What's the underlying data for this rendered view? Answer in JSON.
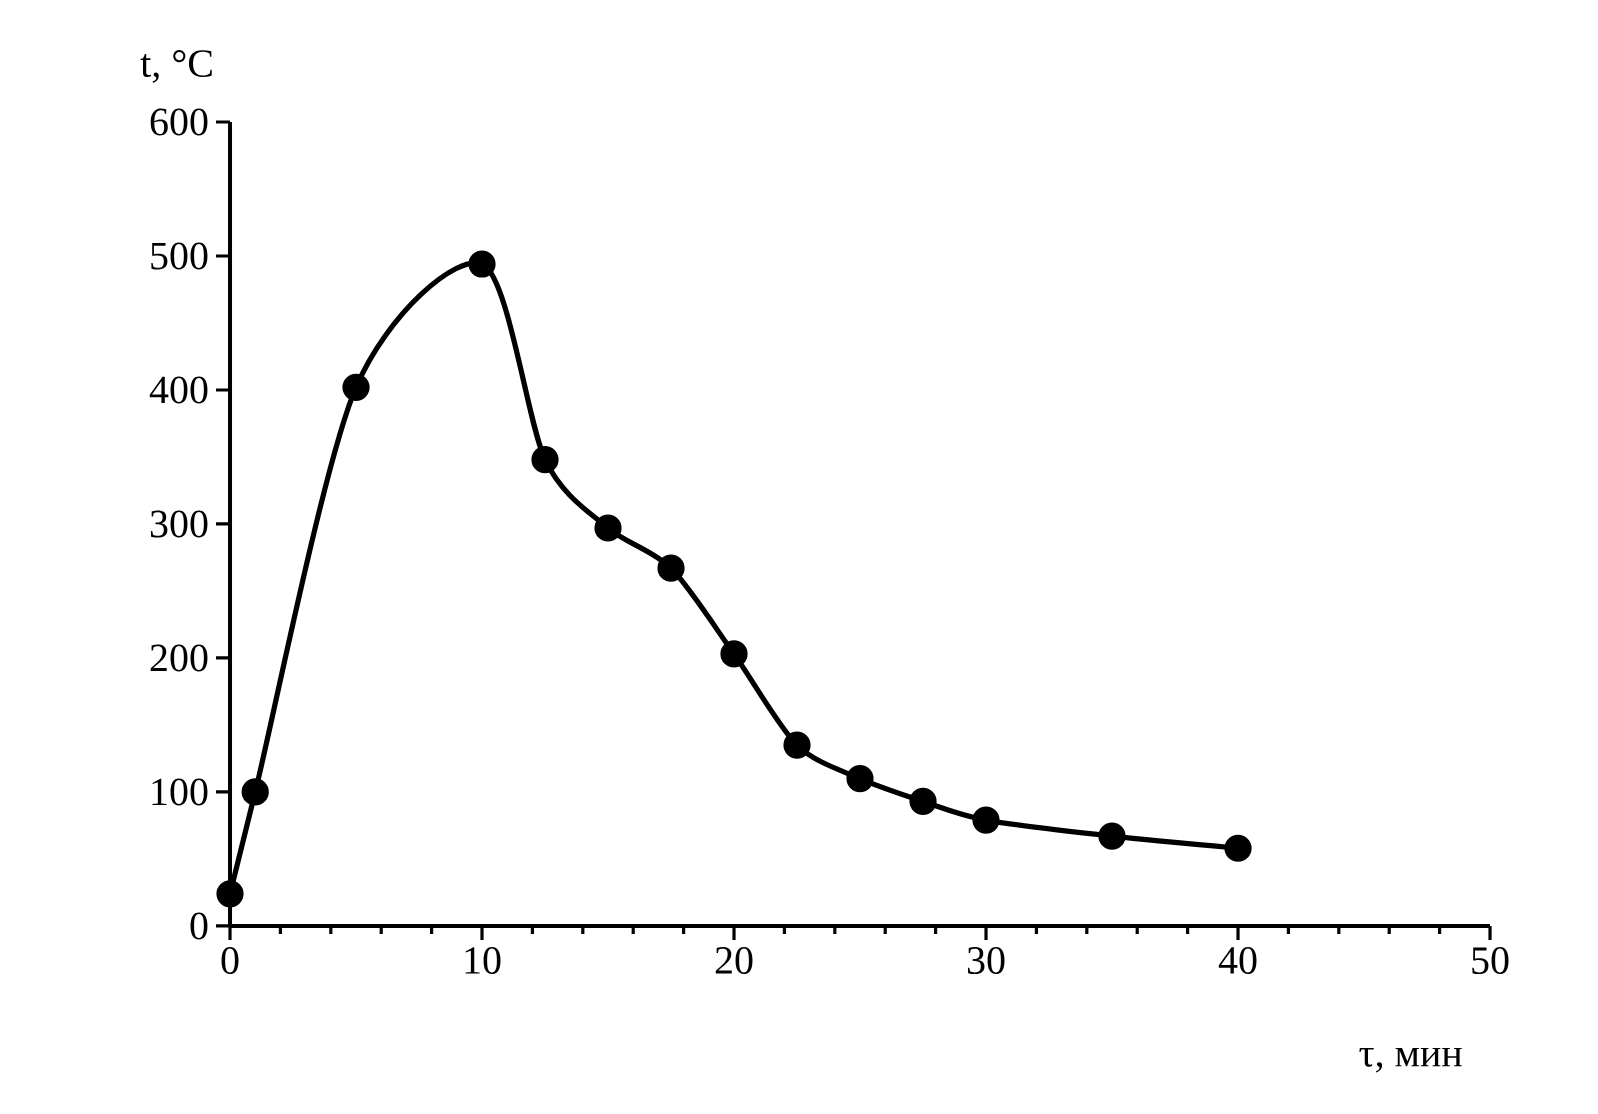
{
  "chart_data": {
    "type": "line",
    "xlabel": "τ, мин",
    "ylabel": "t, °C",
    "x": [
      0,
      1,
      5,
      10,
      12.5,
      15,
      17.5,
      20,
      22.5,
      25,
      27.5,
      30,
      35,
      40
    ],
    "series": [
      {
        "color": "#000000",
        "values": [
          24,
          100,
          402,
          494,
          348,
          297,
          267,
          203,
          135,
          110,
          93,
          79,
          67,
          58
        ]
      }
    ],
    "xlim": [
      0,
      50
    ],
    "ylim": [
      0,
      600
    ],
    "xticks": [
      0,
      {
        "value": 2,
        "label": null
      },
      {
        "value": 4,
        "label": null
      },
      {
        "value": 6,
        "label": null
      },
      {
        "value": 8,
        "label": null
      },
      10,
      {
        "value": 12,
        "label": null
      },
      {
        "value": 14,
        "label": null
      },
      {
        "value": 16,
        "label": null
      },
      {
        "value": 18,
        "label": null
      },
      20,
      {
        "value": 22,
        "label": null
      },
      {
        "value": 24,
        "label": null
      },
      {
        "value": 26,
        "label": null
      },
      {
        "value": 28,
        "label": null
      },
      30,
      {
        "value": 32,
        "label": null
      },
      {
        "value": 34,
        "label": null
      },
      {
        "value": 36,
        "label": null
      },
      {
        "value": 38,
        "label": null
      },
      40,
      {
        "value": 42,
        "label": null
      },
      {
        "value": 44,
        "label": null
      },
      {
        "value": 46,
        "label": null
      },
      {
        "value": 48,
        "label": null
      },
      50
    ],
    "yticks": [
      0,
      100,
      200,
      300,
      400,
      500,
      600
    ],
    "marker": "circle",
    "line_style": "solid"
  }
}
